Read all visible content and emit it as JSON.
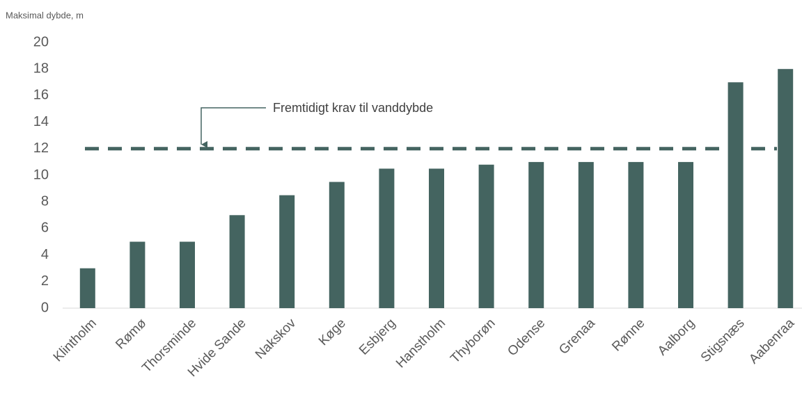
{
  "chart_data": {
    "type": "bar",
    "y_axis_label": "Maksimal dybde, m",
    "categories": [
      "Klintholm",
      "Rømø",
      "Thorsminde",
      "Hvide Sande",
      "Nakskov",
      "Køge",
      "Esbjerg",
      "Hanstholm",
      "Thyborøn",
      "Odense",
      "Grenaa",
      "Rønne",
      "Aalborg",
      "Stigsnæs",
      "Aabenraa"
    ],
    "values": [
      3,
      5,
      5,
      7,
      8.5,
      9.5,
      10.5,
      10.5,
      10.8,
      11,
      11,
      11,
      11,
      17,
      18
    ],
    "color": "#446460",
    "ylim": [
      0,
      20
    ],
    "yticks": [
      0,
      2,
      4,
      6,
      8,
      10,
      12,
      14,
      16,
      18,
      20
    ],
    "grid": false,
    "reference_line": {
      "value": 12,
      "label": "Fremtidigt krav til vanddybde",
      "color": "#446460"
    }
  }
}
